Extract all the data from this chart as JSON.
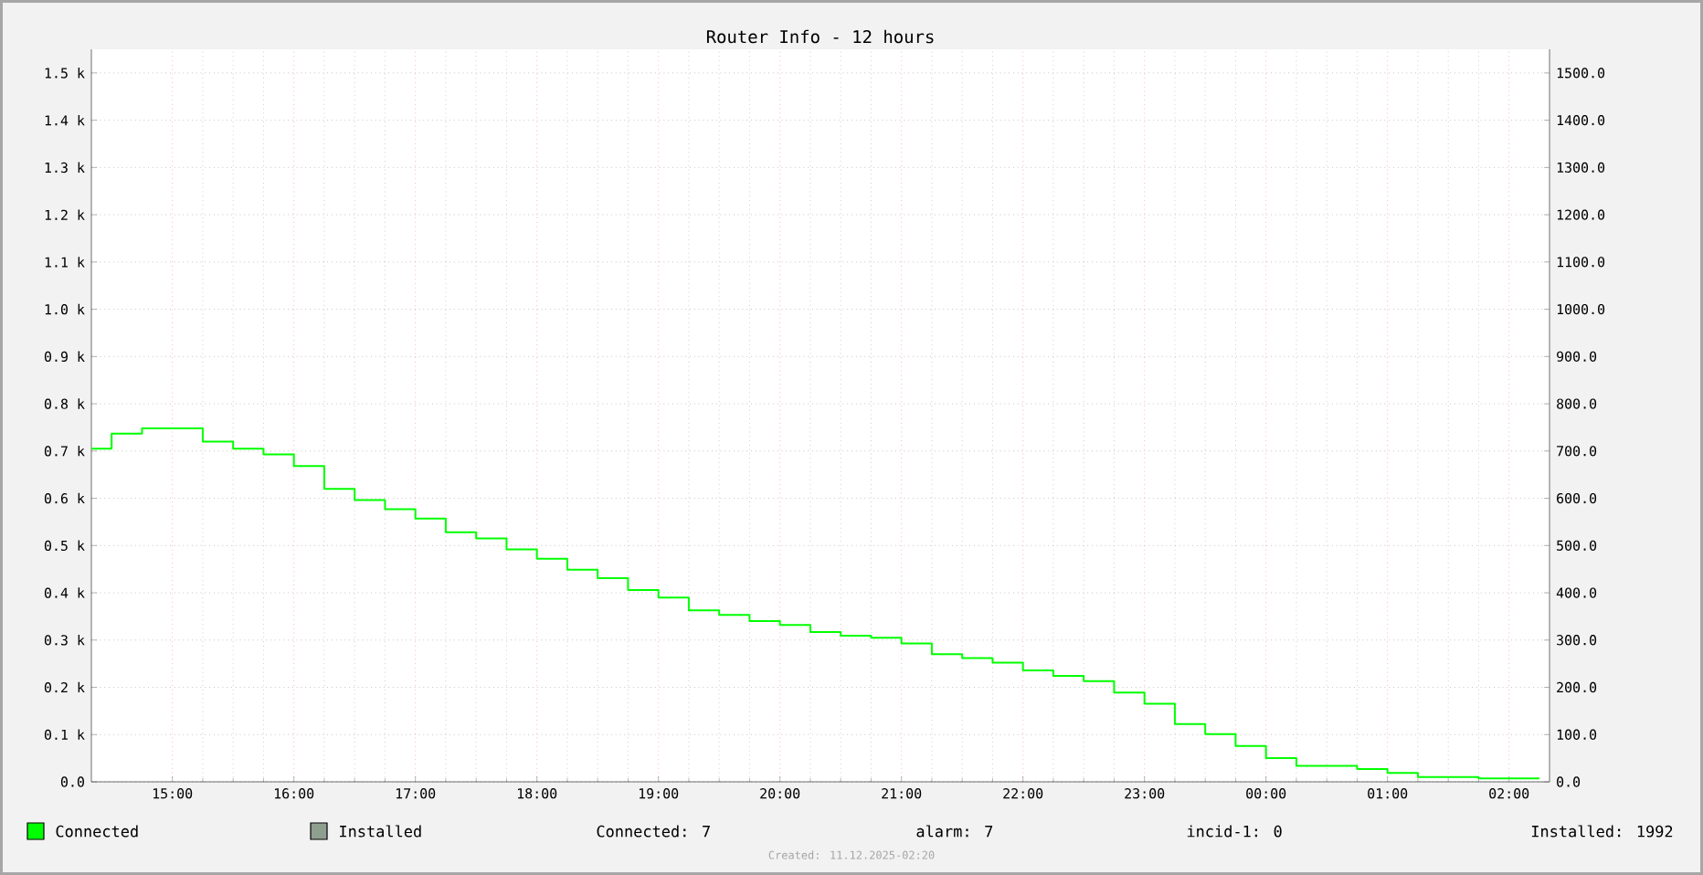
{
  "chart_data": {
    "type": "step",
    "title": "Router Info - 12 hours",
    "x": [
      "2025-12-10T14:20",
      "2025-12-10T14:30",
      "2025-12-10T14:45",
      "2025-12-10T15:15",
      "2025-12-10T15:30",
      "2025-12-10T15:45",
      "2025-12-10T16:00",
      "2025-12-10T16:15",
      "2025-12-10T16:30",
      "2025-12-10T16:45",
      "2025-12-10T17:00",
      "2025-12-10T17:15",
      "2025-12-10T17:30",
      "2025-12-10T17:45",
      "2025-12-10T18:00",
      "2025-12-10T18:15",
      "2025-12-10T18:30",
      "2025-12-10T18:45",
      "2025-12-10T19:00",
      "2025-12-10T19:15",
      "2025-12-10T19:30",
      "2025-12-10T19:45",
      "2025-12-10T20:00",
      "2025-12-10T20:15",
      "2025-12-10T20:30",
      "2025-12-10T20:45",
      "2025-12-10T21:00",
      "2025-12-10T21:15",
      "2025-12-10T21:30",
      "2025-12-10T21:45",
      "2025-12-10T22:00",
      "2025-12-10T22:15",
      "2025-12-10T22:30",
      "2025-12-10T22:45",
      "2025-12-10T23:00",
      "2025-12-10T23:15",
      "2025-12-10T23:30",
      "2025-12-10T23:45",
      "2025-12-11T00:00",
      "2025-12-11T00:15",
      "2025-12-11T00:45",
      "2025-12-11T01:00",
      "2025-12-11T01:15",
      "2025-12-11T01:45",
      "2025-12-11T02:15"
    ],
    "series": [
      {
        "name": "Connected",
        "color": "#00ff00",
        "values": [
          705,
          737,
          748,
          720,
          705,
          693,
          668,
          620,
          596,
          577,
          557,
          528,
          515,
          492,
          472,
          449,
          431,
          406,
          390,
          363,
          353,
          340,
          332,
          317,
          309,
          305,
          293,
          270,
          262,
          252,
          236,
          224,
          213,
          189,
          165,
          122,
          101,
          76,
          50,
          34,
          27,
          19,
          10,
          7,
          7
        ]
      },
      {
        "name": "Installed",
        "color": "#8f9f8f",
        "values": [
          null,
          null,
          null,
          null,
          null,
          null,
          null,
          null,
          null,
          null,
          null,
          null,
          null,
          null,
          null,
          null,
          null,
          null,
          null,
          null,
          null,
          null,
          null,
          null,
          null,
          null,
          null,
          null,
          null,
          null,
          null,
          null,
          null,
          null,
          null,
          null,
          null,
          null,
          null,
          null,
          null,
          null,
          null,
          null,
          null
        ]
      }
    ],
    "xlim": [
      "2025-12-10T14:20",
      "2025-12-11T02:20"
    ],
    "xticks": [
      {
        "value": "2025-12-10T15:00",
        "label": "15:00"
      },
      {
        "value": "2025-12-10T16:00",
        "label": "16:00"
      },
      {
        "value": "2025-12-10T17:00",
        "label": "17:00"
      },
      {
        "value": "2025-12-10T18:00",
        "label": "18:00"
      },
      {
        "value": "2025-12-10T19:00",
        "label": "19:00"
      },
      {
        "value": "2025-12-10T20:00",
        "label": "20:00"
      },
      {
        "value": "2025-12-10T21:00",
        "label": "21:00"
      },
      {
        "value": "2025-12-10T22:00",
        "label": "22:00"
      },
      {
        "value": "2025-12-10T23:00",
        "label": "23:00"
      },
      {
        "value": "2025-12-11T00:00",
        "label": "00:00"
      },
      {
        "value": "2025-12-11T01:00",
        "label": "01:00"
      },
      {
        "value": "2025-12-11T02:00",
        "label": "02:00"
      }
    ],
    "ylim": [
      0,
      1550
    ],
    "yticks": [
      {
        "value": 0,
        "label": "0.0"
      },
      {
        "value": 100,
        "label": "0.1 k"
      },
      {
        "value": 200,
        "label": "0.2 k"
      },
      {
        "value": 300,
        "label": "0.3 k"
      },
      {
        "value": 400,
        "label": "0.4 k"
      },
      {
        "value": 500,
        "label": "0.5 k"
      },
      {
        "value": 600,
        "label": "0.6 k"
      },
      {
        "value": 700,
        "label": "0.7 k"
      },
      {
        "value": 800,
        "label": "0.8 k"
      },
      {
        "value": 900,
        "label": "0.9 k"
      },
      {
        "value": 1000,
        "label": "1.0 k"
      },
      {
        "value": 1100,
        "label": "1.1 k"
      },
      {
        "value": 1200,
        "label": "1.2 k"
      },
      {
        "value": 1300,
        "label": "1.3 k"
      },
      {
        "value": 1400,
        "label": "1.4 k"
      },
      {
        "value": 1500,
        "label": "1.5 k"
      }
    ],
    "y2lim": [
      0,
      1550
    ],
    "y2ticks": [
      {
        "value": 0,
        "label": "0.0"
      },
      {
        "value": 100,
        "label": "100.0"
      },
      {
        "value": 200,
        "label": "200.0"
      },
      {
        "value": 300,
        "label": "300.0"
      },
      {
        "value": 400,
        "label": "400.0"
      },
      {
        "value": 500,
        "label": "500.0"
      },
      {
        "value": 600,
        "label": "600.0"
      },
      {
        "value": 700,
        "label": "700.0"
      },
      {
        "value": 800,
        "label": "800.0"
      },
      {
        "value": 900,
        "label": "900.0"
      },
      {
        "value": 1000,
        "label": "1000.0"
      },
      {
        "value": 1100,
        "label": "1100.0"
      },
      {
        "value": 1200,
        "label": "1200.0"
      },
      {
        "value": 1300,
        "label": "1300.0"
      },
      {
        "value": 1400,
        "label": "1400.0"
      },
      {
        "value": 1500,
        "label": "1500.0"
      }
    ],
    "grid": true,
    "legend": "bottom",
    "annotations": [
      "Connected:    7",
      "alarm:    7",
      "incid-1:    0",
      "Installed: 1992",
      "Created: 11.12.2025-02:20"
    ]
  }
}
